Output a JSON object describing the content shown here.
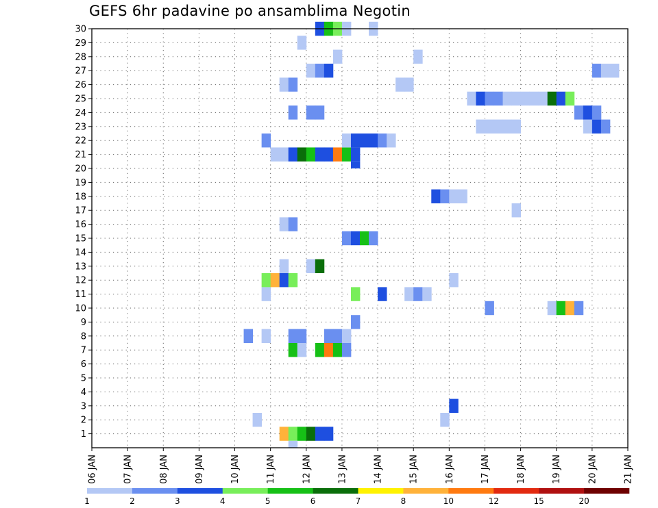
{
  "chart_data": {
    "type": "heatmap",
    "title": "GEFS 6hr padavine po ansamblima Negotin",
    "xlabel": "",
    "ylabel": "",
    "x_ticks": [
      "06 JAN",
      "07 JAN",
      "08 JAN",
      "09 JAN",
      "10 JAN",
      "11 JAN",
      "12 JAN",
      "13 JAN",
      "14 JAN",
      "15 JAN",
      "16 JAN",
      "17 JAN",
      "18 JAN",
      "19 JAN",
      "20 JAN",
      "21 JAN"
    ],
    "y_ticks": [
      1,
      2,
      3,
      4,
      5,
      6,
      7,
      8,
      9,
      10,
      11,
      12,
      13,
      14,
      15,
      16,
      17,
      18,
      19,
      20,
      21,
      22,
      23,
      24,
      25,
      26,
      27,
      28,
      29,
      30
    ],
    "xlim": [
      0,
      15
    ],
    "ylim": [
      0,
      30
    ],
    "grid": true,
    "colorbar": {
      "labels": [
        "1",
        "2",
        "3",
        "4",
        "5",
        "6",
        "7",
        "8",
        "10",
        "12",
        "15",
        "20"
      ],
      "colors": [
        "#b4c8f5",
        "#6a8ff0",
        "#1e4fe0",
        "#78ee5a",
        "#16c016",
        "#0a6e0a",
        "#fff200",
        "#ffb23a",
        "#ff7a10",
        "#e22a10",
        "#b01010",
        "#6e0000"
      ]
    },
    "cells": [
      {
        "member": 1,
        "start": 5.25,
        "colors": [
          "#ffb23a",
          "#78ee5a",
          "#16c016",
          "#0a6e0a",
          "#1e4fe0",
          "#1e4fe0"
        ]
      },
      {
        "member": 1,
        "start": 5.5,
        "colors": [
          "#b4c8f5"
        ],
        "below": true
      },
      {
        "member": 2,
        "start": 4.5,
        "colors": [
          "#b4c8f5"
        ]
      },
      {
        "member": 2,
        "start": 9.75,
        "colors": [
          "#b4c8f5"
        ]
      },
      {
        "member": 3,
        "start": 10.0,
        "colors": [
          "#1e4fe0"
        ]
      },
      {
        "member": 7,
        "start": 5.5,
        "colors": [
          "#16c016",
          "#b4c8f5"
        ]
      },
      {
        "member": 7,
        "start": 6.25,
        "colors": [
          "#16c016",
          "#ff7a10",
          "#16c016",
          "#6a8ff0"
        ]
      },
      {
        "member": 8,
        "start": 4.25,
        "colors": [
          "#6a8ff0"
        ]
      },
      {
        "member": 8,
        "start": 4.75,
        "colors": [
          "#b4c8f5"
        ]
      },
      {
        "member": 8,
        "start": 5.5,
        "colors": [
          "#6a8ff0",
          "#6a8ff0"
        ]
      },
      {
        "member": 8,
        "start": 6.5,
        "colors": [
          "#6a8ff0",
          "#6a8ff0",
          "#b4c8f5"
        ]
      },
      {
        "member": 9,
        "start": 7.25,
        "colors": [
          "#6a8ff0"
        ]
      },
      {
        "member": 10,
        "start": 11.0,
        "colors": [
          "#6a8ff0"
        ]
      },
      {
        "member": 10,
        "start": 12.75,
        "colors": [
          "#b4c8f5",
          "#16c016",
          "#ffb23a",
          "#6a8ff0"
        ]
      },
      {
        "member": 11,
        "start": 4.75,
        "colors": [
          "#b4c8f5"
        ]
      },
      {
        "member": 11,
        "start": 7.25,
        "colors": [
          "#78ee5a"
        ]
      },
      {
        "member": 11,
        "start": 8.0,
        "colors": [
          "#1e4fe0"
        ]
      },
      {
        "member": 11,
        "start": 8.75,
        "colors": [
          "#b4c8f5",
          "#6a8ff0",
          "#b4c8f5"
        ]
      },
      {
        "member": 12,
        "start": 4.75,
        "colors": [
          "#78ee5a",
          "#ffb23a",
          "#1e4fe0",
          "#78ee5a"
        ]
      },
      {
        "member": 12,
        "start": 10.0,
        "colors": [
          "#b4c8f5"
        ]
      },
      {
        "member": 13,
        "start": 5.25,
        "colors": [
          "#b4c8f5"
        ]
      },
      {
        "member": 13,
        "start": 6.0,
        "colors": [
          "#b4c8f5",
          "#0a6e0a"
        ]
      },
      {
        "member": 15,
        "start": 7.0,
        "colors": [
          "#6a8ff0",
          "#1e4fe0",
          "#16c016",
          "#6a8ff0"
        ]
      },
      {
        "member": 16,
        "start": 5.25,
        "colors": [
          "#b4c8f5",
          "#6a8ff0"
        ]
      },
      {
        "member": 17,
        "start": 11.75,
        "colors": [
          "#b4c8f5"
        ]
      },
      {
        "member": 18,
        "start": 9.5,
        "colors": [
          "#1e4fe0",
          "#6a8ff0",
          "#b4c8f5",
          "#b4c8f5"
        ]
      },
      {
        "member": 21,
        "start": 5.0,
        "colors": [
          "#b4c8f5",
          "#b4c8f5",
          "#1e4fe0",
          "#0a6e0a",
          "#16c016",
          "#1e4fe0",
          "#1e4fe0",
          "#ff7a10",
          "#16c016",
          "#1e4fe0"
        ]
      },
      {
        "member": 22,
        "start": 4.75,
        "colors": [
          "#6a8ff0"
        ]
      },
      {
        "member": 22,
        "start": 7.0,
        "colors": [
          "#b4c8f5",
          "#1e4fe0",
          "#1e4fe0",
          "#1e4fe0",
          "#6a8ff0",
          "#b4c8f5"
        ]
      },
      {
        "member": 21,
        "start": 7.25,
        "colors": [
          "#1e4fe0"
        ],
        "below": true
      },
      {
        "member": 23,
        "start": 10.75,
        "colors": [
          "#b4c8f5",
          "#b4c8f5",
          "#b4c8f5",
          "#b4c8f5",
          "#b4c8f5"
        ]
      },
      {
        "member": 23,
        "start": 13.75,
        "colors": [
          "#b4c8f5",
          "#1e4fe0",
          "#6a8ff0"
        ]
      },
      {
        "member": 24,
        "start": 5.5,
        "colors": [
          "#6a8ff0"
        ]
      },
      {
        "member": 24,
        "start": 6.0,
        "colors": [
          "#6a8ff0",
          "#6a8ff0"
        ]
      },
      {
        "member": 24,
        "start": 13.5,
        "colors": [
          "#6a8ff0",
          "#1e4fe0",
          "#6a8ff0"
        ]
      },
      {
        "member": 25,
        "start": 10.5,
        "colors": [
          "#b4c8f5",
          "#1e4fe0",
          "#6a8ff0",
          "#6a8ff0",
          "#b4c8f5",
          "#b4c8f5",
          "#b4c8f5",
          "#b4c8f5",
          "#b4c8f5",
          "#0a6e0a",
          "#1e4fe0",
          "#78ee5a"
        ]
      },
      {
        "member": 26,
        "start": 5.25,
        "colors": [
          "#b4c8f5",
          "#6a8ff0"
        ]
      },
      {
        "member": 26,
        "start": 8.5,
        "colors": [
          "#b4c8f5",
          "#b4c8f5"
        ]
      },
      {
        "member": 27,
        "start": 6.0,
        "colors": [
          "#b4c8f5",
          "#6a8ff0",
          "#1e4fe0"
        ]
      },
      {
        "member": 27,
        "start": 14.0,
        "colors": [
          "#6a8ff0",
          "#b4c8f5",
          "#b4c8f5"
        ]
      },
      {
        "member": 28,
        "start": 6.75,
        "colors": [
          "#b4c8f5"
        ]
      },
      {
        "member": 28,
        "start": 9.0,
        "colors": [
          "#b4c8f5"
        ]
      },
      {
        "member": 29,
        "start": 5.75,
        "colors": [
          "#b4c8f5"
        ]
      },
      {
        "member": 30,
        "start": 6.25,
        "colors": [
          "#1e4fe0",
          "#16c016",
          "#78ee5a",
          "#b4c8f5"
        ]
      },
      {
        "member": 30,
        "start": 7.75,
        "colors": [
          "#b4c8f5"
        ]
      }
    ]
  }
}
